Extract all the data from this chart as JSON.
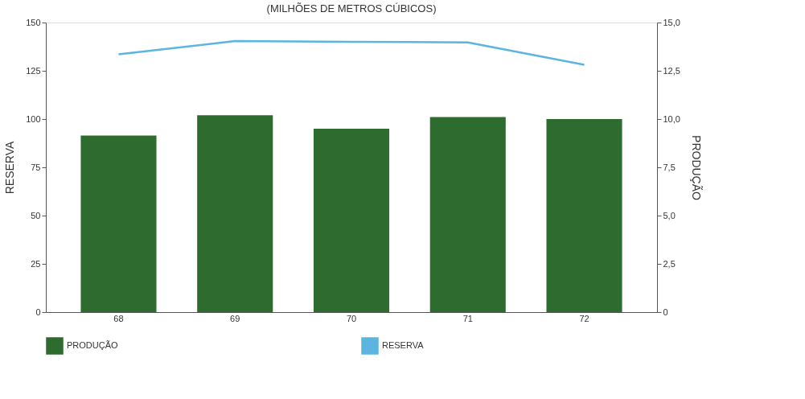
{
  "chart_data": {
    "type": "bar",
    "title": "(MILHÕES DE METROS CÚBICOS)",
    "ylabel": "RESERVA",
    "y2label": "PRODUÇÃO",
    "categories": [
      "68",
      "69",
      "70",
      "71",
      "72"
    ],
    "series": [
      {
        "name": "PRODUÇÃO",
        "axis": "y2",
        "color": "#2e6b2e",
        "values": [
          9.15,
          10.2,
          9.5,
          10.1,
          10.0
        ]
      },
      {
        "name": "RESERVA",
        "type": "line",
        "axis": "y",
        "color": "#5bb5e0",
        "values": [
          133.5,
          140.4,
          140.0,
          139.7,
          128.1
        ]
      }
    ],
    "ylim": [
      0,
      150
    ],
    "yticks": [
      0,
      25,
      50,
      75,
      100,
      125,
      150
    ],
    "y2lim": [
      0,
      15
    ],
    "y2ticks": [
      {
        "value": 0,
        "label": "0"
      },
      {
        "value": 2.5,
        "label": "2,5"
      },
      {
        "value": 5,
        "label": "5,0"
      },
      {
        "value": 7.5,
        "label": "7,5"
      },
      {
        "value": 10,
        "label": "10,0"
      },
      {
        "value": 12.5,
        "label": "12,5"
      },
      {
        "value": 15,
        "label": "15,0"
      }
    ],
    "grid": false,
    "legend": "bottom"
  }
}
